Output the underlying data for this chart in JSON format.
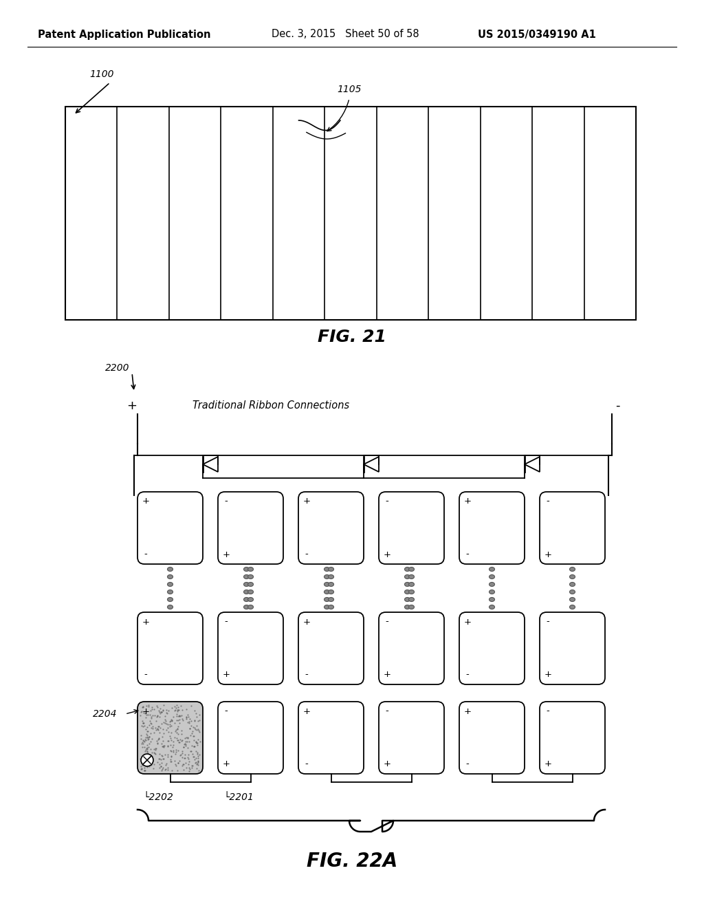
{
  "header_left": "Patent Application Publication",
  "header_mid": "Dec. 3, 2015   Sheet 50 of 58",
  "header_right": "US 2015/0349190 A1",
  "fig21_label": "FIG. 21",
  "fig22a_label": "FIG. 22A",
  "fig21_ref_1100": "1100",
  "fig21_ref_1105": "1105",
  "fig22_ref_2200": "2200",
  "fig22_ref_2204": "2204",
  "fig22_ref_2202": "2202",
  "fig22_ref_2201": "2201",
  "fig22_title": "Traditional Ribbon Connections",
  "bg_color": "#ffffff",
  "line_color": "#000000"
}
